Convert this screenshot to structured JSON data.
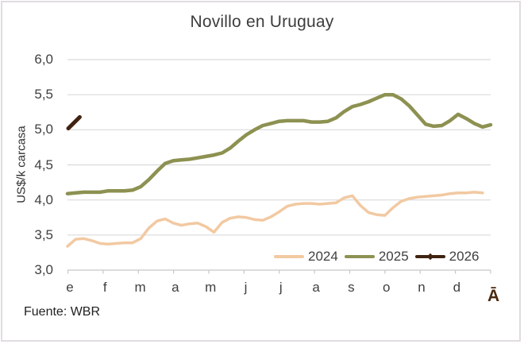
{
  "logo": {
    "glyph": "Ā"
  },
  "chart_data": {
    "type": "line",
    "title": "Novillo en Uruguay",
    "ylabel": "US$/k carcasa",
    "xlabel": "",
    "source": "Fuente: WBR",
    "grid": true,
    "legend_position": "bottom-right-inside",
    "ylim": [
      3.0,
      6.0
    ],
    "x_unit": "weeks (52 per year)",
    "y_ticks": [
      {
        "label": "6,0",
        "value": 6.0
      },
      {
        "label": "5,5",
        "value": 5.5
      },
      {
        "label": "5,0",
        "value": 5.0
      },
      {
        "label": "4,5",
        "value": 4.5
      },
      {
        "label": "4,0",
        "value": 4.0
      },
      {
        "label": "3,5",
        "value": 3.5
      },
      {
        "label": "3,0",
        "value": 3.0
      }
    ],
    "categories": [
      "e",
      "f",
      "m",
      "a",
      "m",
      "j",
      "j",
      "a",
      "s",
      "o",
      "n",
      "d"
    ],
    "series": [
      {
        "name": "2024",
        "color": "#F2C9A2",
        "line_width": 3.5,
        "marker": false,
        "start_week": 0,
        "week_step": 1,
        "values": [
          3.34,
          3.44,
          3.45,
          3.42,
          3.38,
          3.37,
          3.38,
          3.39,
          3.39,
          3.45,
          3.6,
          3.7,
          3.73,
          3.67,
          3.64,
          3.66,
          3.67,
          3.62,
          3.54,
          3.68,
          3.74,
          3.76,
          3.75,
          3.72,
          3.71,
          3.76,
          3.83,
          3.91,
          3.94,
          3.95,
          3.95,
          3.94,
          3.95,
          3.96,
          4.03,
          4.06,
          3.92,
          3.82,
          3.79,
          3.78,
          3.89,
          3.98,
          4.02,
          4.04,
          4.05,
          4.06,
          4.07,
          4.09,
          4.1,
          4.1,
          4.11,
          4.1
        ]
      },
      {
        "name": "2025",
        "color": "#8D9151",
        "line_width": 4.5,
        "marker": false,
        "start_week": 0,
        "week_step": 1,
        "values": [
          4.09,
          4.1,
          4.11,
          4.11,
          4.11,
          4.13,
          4.13,
          4.13,
          4.14,
          4.19,
          4.29,
          4.41,
          4.52,
          4.56,
          4.57,
          4.58,
          4.6,
          4.62,
          4.64,
          4.67,
          4.74,
          4.84,
          4.93,
          5.0,
          5.06,
          5.09,
          5.12,
          5.13,
          5.13,
          5.13,
          5.11,
          5.11,
          5.12,
          5.17,
          5.26,
          5.33,
          5.36,
          5.4,
          5.45,
          5.5,
          5.5,
          5.44,
          5.34,
          5.21,
          5.08,
          5.05,
          5.06,
          5.13,
          5.22,
          5.16,
          5.09,
          5.04,
          5.07
        ]
      },
      {
        "name": "2026",
        "color": "#3F2310",
        "line_width": 5,
        "marker": true,
        "start_week": 0.1,
        "week_step": 1.4,
        "values": [
          5.02,
          5.18
        ]
      }
    ]
  }
}
